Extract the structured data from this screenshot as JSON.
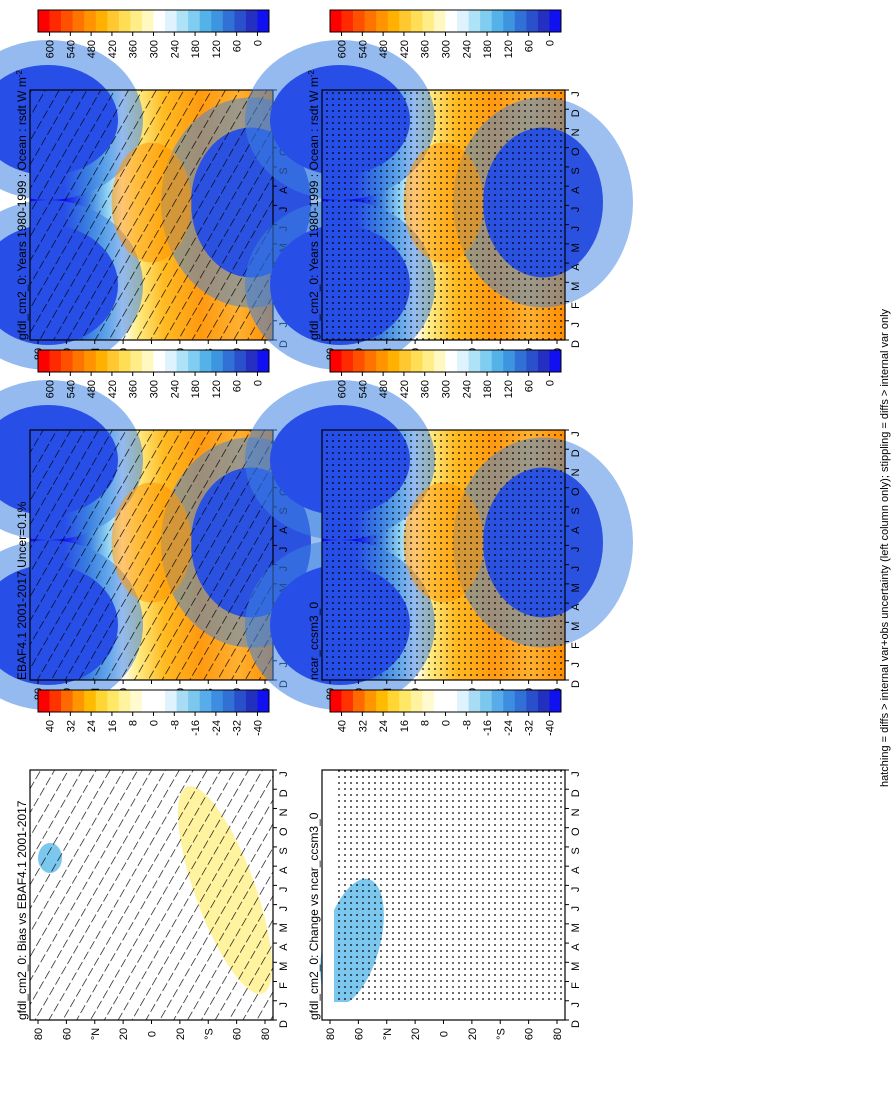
{
  "footer_note": "hatching = diffs > internal var+obs uncertainty (left column only); stippling = diffs > internal var only",
  "months": [
    "D",
    "J",
    "F",
    "M",
    "A",
    "M",
    "J",
    "J",
    "A",
    "S",
    "O",
    "N",
    "D",
    "J"
  ],
  "lat_ticks": [
    "80",
    "60",
    "°N",
    "20",
    "0",
    "20",
    "°S",
    "60",
    "80"
  ],
  "colors": {
    "field_scale": [
      "#ff0000",
      "#ff2a00",
      "#ff5000",
      "#ff7300",
      "#ff9400",
      "#ffb000",
      "#ffc830",
      "#ffdd55",
      "#ffee88",
      "#fff8c0",
      "#ffffff",
      "#dff3ff",
      "#aee2f7",
      "#7fcdf0",
      "#55b2e8",
      "#3d94df",
      "#3171d6",
      "#2b50cc",
      "#2530c2",
      "#1010f0"
    ],
    "diff_scale": [
      "#ff0000",
      "#ff3300",
      "#ff6a00",
      "#ff9600",
      "#ffbb00",
      "#ffd633",
      "#ffe866",
      "#fff3a0",
      "#fffad0",
      "#ffffff",
      "#ffffff",
      "#dff3ff",
      "#a8dcf5",
      "#7cc7ee",
      "#58acea",
      "#3d8ee0",
      "#3170d5",
      "#2a4fcb",
      "#2230c0",
      "#1010f0"
    ]
  },
  "chart_data": [
    {
      "type": "heatmap",
      "title": "gfdl_cm2_0: Years 1980-1999 : Ocean : rsdt W m",
      "title_sup": "-2",
      "panel": "top-left",
      "overlay": "hatching",
      "colorbar": {
        "ticks": [
          "600",
          "540",
          "480",
          "420",
          "360",
          "300",
          "240",
          "180",
          "120",
          "60",
          "0"
        ],
        "range": [
          0,
          600
        ]
      }
    },
    {
      "type": "heatmap",
      "title": "gfdl_cm2_0: Years 1980-1999 : Ocean : rsdt W m",
      "title_sup": "-2",
      "panel": "top-right",
      "overlay": "stippling",
      "colorbar": {
        "ticks": [
          "600",
          "540",
          "480",
          "420",
          "360",
          "300",
          "240",
          "180",
          "120",
          "60",
          "0"
        ],
        "range": [
          0,
          600
        ]
      }
    },
    {
      "type": "heatmap",
      "title": "EBAF4.1 2001-2017 Uncer=0.1%",
      "title_sup": "",
      "panel": "middle-left",
      "overlay": "hatching",
      "colorbar": {
        "ticks": [
          "600",
          "540",
          "480",
          "420",
          "360",
          "300",
          "240",
          "180",
          "120",
          "60",
          "0"
        ],
        "range": [
          0,
          600
        ]
      }
    },
    {
      "type": "heatmap",
      "title": "ncar_ccsm3_0",
      "title_sup": "",
      "panel": "middle-right",
      "overlay": "stippling",
      "colorbar": {
        "ticks": [
          "600",
          "540",
          "480",
          "420",
          "360",
          "300",
          "240",
          "180",
          "120",
          "60",
          "0"
        ],
        "range": [
          0,
          600
        ]
      }
    },
    {
      "type": "heatmap",
      "title": "gfdl_cm2_0: Bias vs EBAF4.1 2001-2017",
      "title_sup": "",
      "panel": "bottom-left",
      "overlay": "hatching",
      "colorbar": {
        "ticks": [
          "40",
          "32",
          "24",
          "16",
          "8",
          "0",
          "-8",
          "-16",
          "-24",
          "-32",
          "-40"
        ],
        "range": [
          -40,
          40
        ]
      }
    },
    {
      "type": "heatmap",
      "title": "gfdl_cm2_0: Change vs ncar_ccsm3_0",
      "title_sup": "",
      "panel": "bottom-right",
      "overlay": "stippling",
      "colorbar": {
        "ticks": [
          "40",
          "32",
          "24",
          "16",
          "8",
          "0",
          "-8",
          "-16",
          "-24",
          "-32",
          "-40"
        ],
        "range": [
          -40,
          40
        ]
      }
    }
  ]
}
